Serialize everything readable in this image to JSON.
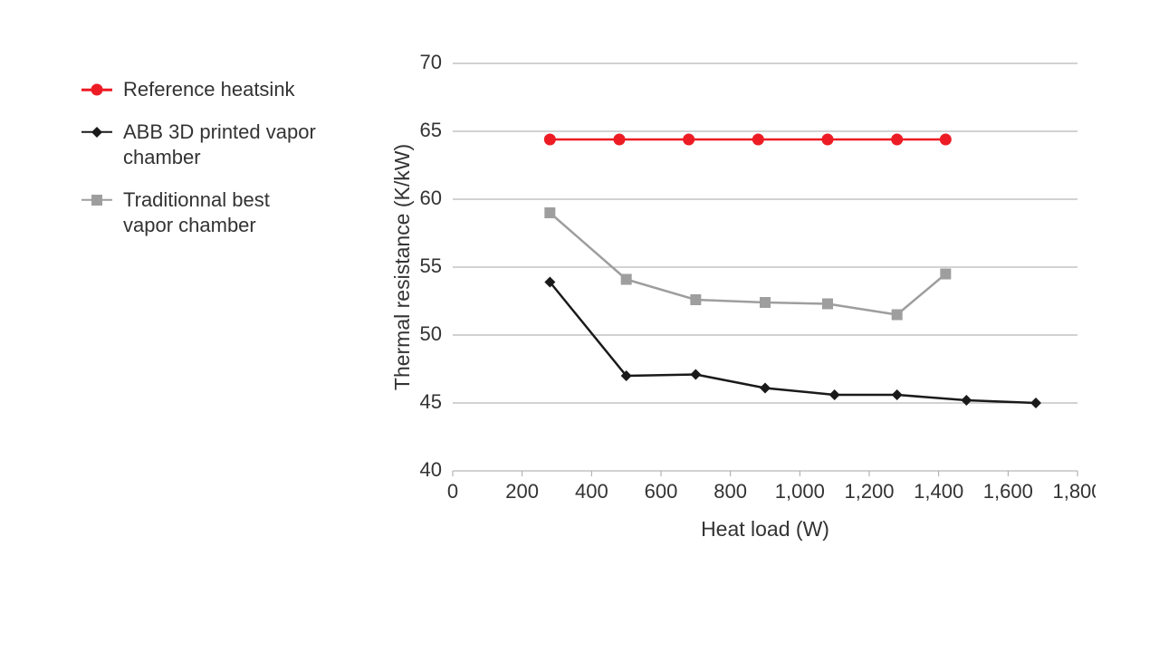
{
  "chart": {
    "type": "line",
    "background_color": "#ffffff",
    "grid_color": "#a6a6a6",
    "grid_width": 1,
    "axis_line_color": "#a6a6a6",
    "text_color": "#333333",
    "tick_fontsize": 22,
    "label_fontsize": 23,
    "xlabel": "Heat load (W)",
    "ylabel": "Thermal resistance (K/kW)",
    "xlim": [
      0,
      1800
    ],
    "ylim": [
      40,
      70
    ],
    "xticks": [
      0,
      200,
      400,
      600,
      800,
      1000,
      1200,
      1400,
      1600,
      1800
    ],
    "xtick_labels": [
      "0",
      "200",
      "400",
      "600",
      "800",
      "1,000",
      "1,200",
      "1,400",
      "1,600",
      "1,800"
    ],
    "yticks": [
      40,
      45,
      50,
      55,
      60,
      65,
      70
    ],
    "ytick_labels": [
      "40",
      "45",
      "50",
      "55",
      "60",
      "65",
      "70"
    ],
    "series": [
      {
        "id": "reference",
        "label": "Reference heatsink",
        "color": "#ed1c24",
        "line_width": 2.5,
        "marker": "circle",
        "marker_size": 13,
        "x": [
          280,
          480,
          680,
          880,
          1080,
          1280,
          1420
        ],
        "y": [
          64.4,
          64.4,
          64.4,
          64.4,
          64.4,
          64.4,
          64.4
        ]
      },
      {
        "id": "abb3d",
        "label": "ABB 3D printed vapor chamber",
        "color": "#1a1a1a",
        "line_width": 2.5,
        "marker": "diamond",
        "marker_size": 12,
        "x": [
          280,
          500,
          700,
          900,
          1100,
          1280,
          1480,
          1680
        ],
        "y": [
          53.9,
          47.0,
          47.1,
          46.1,
          45.6,
          45.6,
          45.2,
          45.0
        ]
      },
      {
        "id": "traditional",
        "label": "Traditionnal best vapor chamber",
        "color": "#9e9e9e",
        "line_width": 2.5,
        "marker": "square",
        "marker_size": 12,
        "x": [
          280,
          500,
          700,
          900,
          1080,
          1280,
          1420
        ],
        "y": [
          59.0,
          54.1,
          52.6,
          52.4,
          52.3,
          51.5,
          54.5
        ]
      }
    ],
    "legend_order": [
      "reference",
      "abb3d",
      "traditional"
    ]
  }
}
